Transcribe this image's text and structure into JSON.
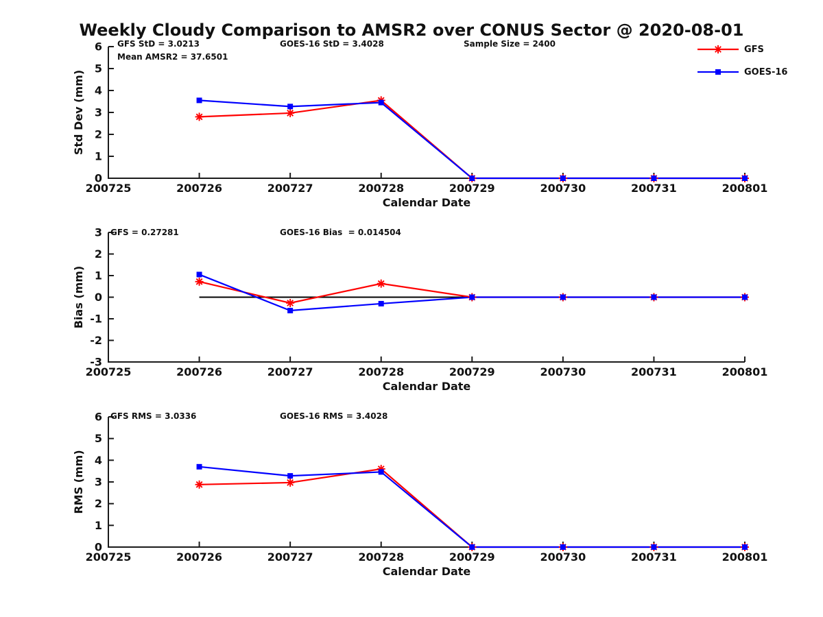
{
  "title": "Weekly Cloudy Comparison to AMSR2 over CONUS Sector @ 2020-08-01",
  "colors": {
    "gfs": "#ff0000",
    "goes16": "#0000ff",
    "axis": "#1a1a1a",
    "zero_line": "#000000",
    "text": "#111111"
  },
  "legend": {
    "position": "top-right",
    "items": [
      {
        "label": "GFS",
        "marker": "asterisk",
        "color": "#ff0000"
      },
      {
        "label": "GOES-16",
        "marker": "square",
        "color": "#0000ff"
      }
    ]
  },
  "chart_data": [
    {
      "type": "line",
      "ylabel": "Std Dev (mm)",
      "xlabel": "Calendar Date",
      "x_ticks": [
        "200725",
        "200726",
        "200727",
        "200728",
        "200729",
        "200730",
        "200731",
        "200801"
      ],
      "ylim": [
        0,
        6
      ],
      "ytick_step": 1,
      "grid": false,
      "x": [
        "200726",
        "200727",
        "200728",
        "200729",
        "200730",
        "200731",
        "200801"
      ],
      "series": [
        {
          "name": "GFS",
          "color": "#ff0000",
          "marker": "asterisk",
          "values": [
            2.8,
            2.97,
            3.55,
            0,
            0,
            0,
            0
          ]
        },
        {
          "name": "GOES-16",
          "color": "#0000ff",
          "marker": "square",
          "values": [
            3.55,
            3.27,
            3.45,
            0,
            0,
            0,
            0
          ]
        }
      ],
      "annotations": [
        {
          "text": "GFS StD = 3.0213"
        },
        {
          "text": "Mean AMSR2 = 37.6501"
        },
        {
          "text": "GOES-16 StD = 3.4028"
        },
        {
          "text": "Sample Size = 2400"
        }
      ]
    },
    {
      "type": "line",
      "ylabel": "Bias (mm)",
      "xlabel": "Calendar Date",
      "x_ticks": [
        "200725",
        "200726",
        "200727",
        "200728",
        "200729",
        "200730",
        "200731",
        "200801"
      ],
      "ylim": [
        -3,
        3
      ],
      "ytick_step": 1,
      "grid": false,
      "zero_line": true,
      "x": [
        "200726",
        "200727",
        "200728",
        "200729",
        "200730",
        "200731",
        "200801"
      ],
      "series": [
        {
          "name": "GFS",
          "color": "#ff0000",
          "marker": "asterisk",
          "values": [
            0.72,
            -0.27,
            0.63,
            0,
            0,
            0,
            0
          ]
        },
        {
          "name": "GOES-16",
          "color": "#0000ff",
          "marker": "square",
          "values": [
            1.05,
            -0.62,
            -0.3,
            0,
            0,
            0,
            0
          ]
        }
      ],
      "annotations": [
        {
          "text": "GFS = 0.27281"
        },
        {
          "text": "GOES-16 Bias  = 0.014504"
        }
      ]
    },
    {
      "type": "line",
      "ylabel": "RMS (mm)",
      "xlabel": "Calendar Date",
      "x_ticks": [
        "200725",
        "200726",
        "200727",
        "200728",
        "200729",
        "200730",
        "200731",
        "200801"
      ],
      "ylim": [
        0,
        6
      ],
      "ytick_step": 1,
      "grid": false,
      "x": [
        "200726",
        "200727",
        "200728",
        "200729",
        "200730",
        "200731",
        "200801"
      ],
      "series": [
        {
          "name": "GFS",
          "color": "#ff0000",
          "marker": "asterisk",
          "values": [
            2.88,
            2.97,
            3.6,
            0,
            0,
            0,
            0
          ]
        },
        {
          "name": "GOES-16",
          "color": "#0000ff",
          "marker": "square",
          "values": [
            3.7,
            3.28,
            3.46,
            0,
            0,
            0,
            0
          ]
        }
      ],
      "annotations": [
        {
          "text": "GFS RMS = 3.0336"
        },
        {
          "text": "GOES-16 RMS = 3.4028"
        }
      ]
    }
  ]
}
